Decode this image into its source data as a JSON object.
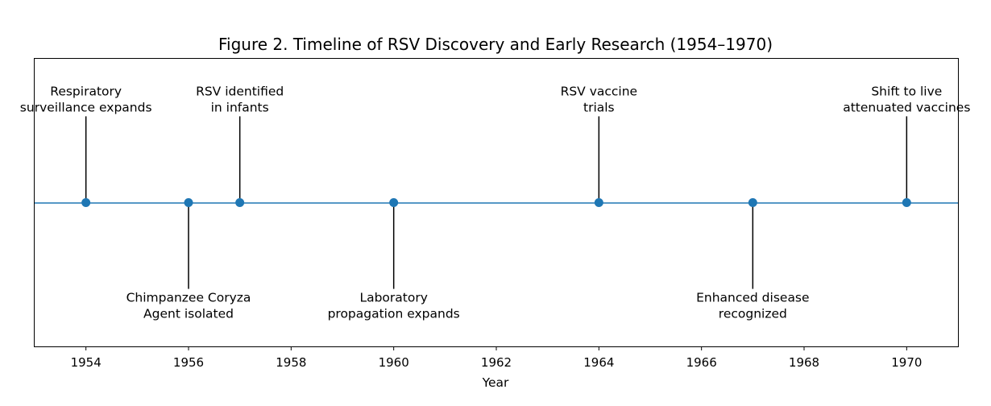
{
  "chart_data": {
    "type": "scatter",
    "title": "Figure 2. Timeline of RSV Discovery and Early Research (1954–1970)",
    "xlabel": "Year",
    "ylabel": "",
    "xlim": [
      1953,
      1971
    ],
    "ylim": [
      -1,
      1
    ],
    "xticks": [
      1954,
      1956,
      1958,
      1960,
      1962,
      1964,
      1966,
      1968,
      1970
    ],
    "grid": false,
    "colors": {
      "marker": "#1f77b4",
      "baseline": "#1f77b4",
      "stem": "#000000",
      "frame": "#000000"
    },
    "events": [
      {
        "year": 1954,
        "level": 0.6,
        "label_lines": [
          "Respiratory",
          "surveillance expands"
        ]
      },
      {
        "year": 1956,
        "level": -0.6,
        "label_lines": [
          "Chimpanzee Coryza",
          "Agent isolated"
        ]
      },
      {
        "year": 1957,
        "level": 0.6,
        "label_lines": [
          "RSV identified",
          "in infants"
        ]
      },
      {
        "year": 1960,
        "level": -0.6,
        "label_lines": [
          "Laboratory",
          "propagation expands"
        ]
      },
      {
        "year": 1964,
        "level": 0.6,
        "label_lines": [
          "RSV vaccine",
          "trials"
        ]
      },
      {
        "year": 1967,
        "level": -0.6,
        "label_lines": [
          "Enhanced disease",
          "recognized"
        ]
      },
      {
        "year": 1970,
        "level": 0.6,
        "label_lines": [
          "Shift to live",
          "attenuated vaccines"
        ]
      }
    ]
  }
}
